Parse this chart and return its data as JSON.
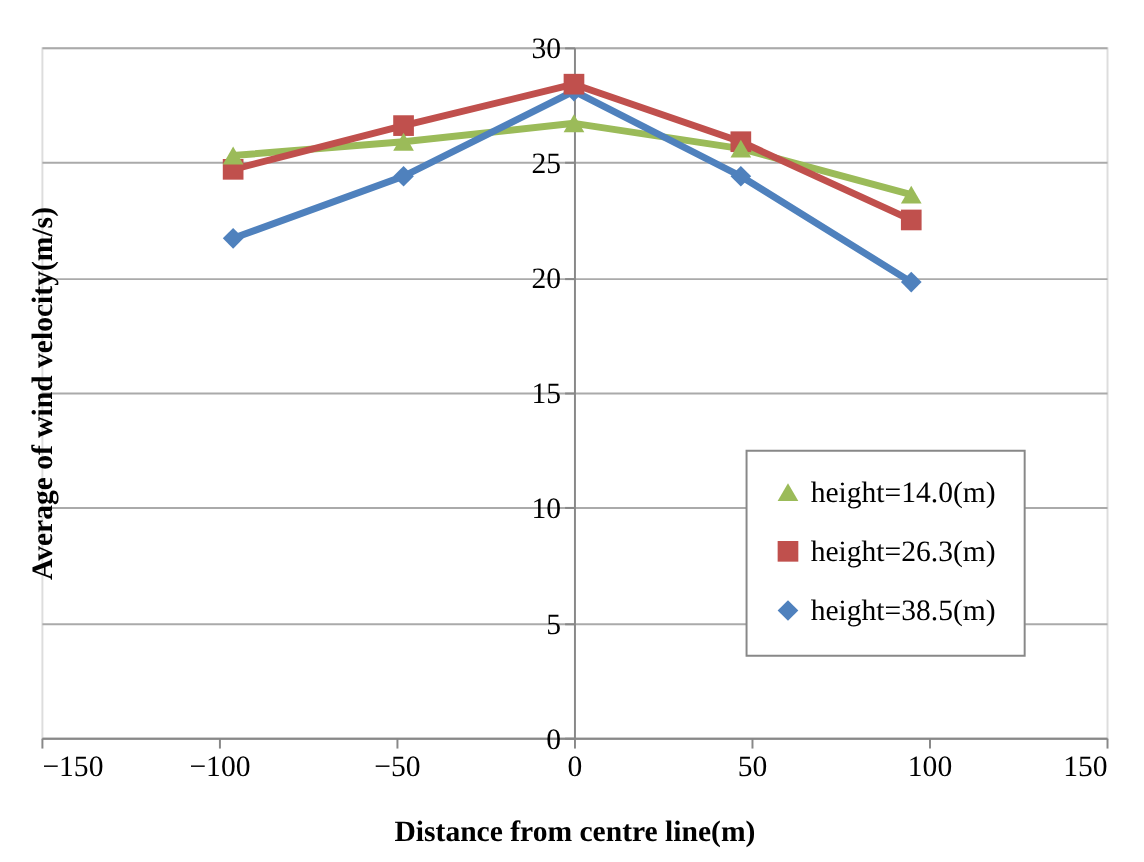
{
  "chart_data": {
    "type": "line",
    "xlabel": "Distance from  centre line(m)",
    "ylabel": "Average  of wind  velocity(m/s)",
    "xlim": [
      -150,
      150
    ],
    "xticks": [
      -150,
      -100,
      -50,
      0,
      50,
      100,
      150
    ],
    "ylim": [
      0,
      30
    ],
    "yticks": [
      0,
      5,
      10,
      15,
      20,
      25,
      30
    ],
    "grid": "y",
    "legend": "bottom right",
    "series": [
      {
        "name": "height=14.0(m)",
        "color": "#9bbb59",
        "marker": "triangle",
        "x": [
          -96,
          -48,
          0,
          47,
          95
        ],
        "values": [
          25.3,
          25.9,
          26.7,
          25.6,
          23.6
        ]
      },
      {
        "name": "height=26.3(m)",
        "color": "#c0504d",
        "marker": "square",
        "x": [
          -96,
          -48,
          0,
          47,
          95
        ],
        "values": [
          24.7,
          26.6,
          28.4,
          25.9,
          22.5
        ]
      },
      {
        "name": "height=38.5(m)",
        "color": "#4f81bd",
        "marker": "diamond",
        "x": [
          -96,
          -48,
          0,
          47,
          95
        ],
        "values": [
          21.7,
          24.4,
          28.1,
          24.4,
          19.8
        ]
      }
    ]
  }
}
